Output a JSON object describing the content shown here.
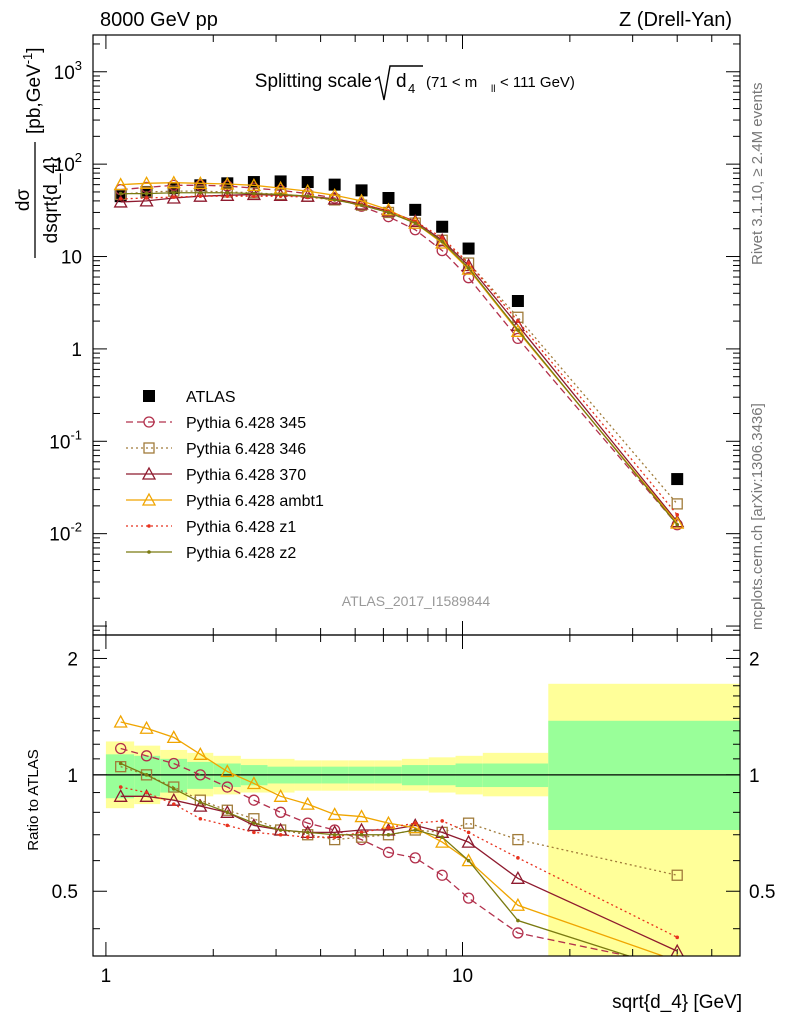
{
  "header": {
    "left": "8000 GeV pp",
    "right": "Z (Drell-Yan)"
  },
  "side_texts": {
    "rivet": "Rivet 3.1.10, ≥ 2.4M events",
    "mcplots": "mcplots.cern.ch [arXiv:1306.3436]"
  },
  "chart_data": [
    {
      "type": "scatter",
      "title_main": "Splitting scale",
      "title_sqrt_arg": "d",
      "title_sqrt_sub": "4",
      "title_range_pre": "(71 < m",
      "title_range_sub": "ll",
      "title_range_post": " < 111 GeV)",
      "ylabel_top": "dσ",
      "ylabel_bottom": "dsqrt{d_4}",
      "ylabel_unit": "[pb,GeV",
      "ylabel_unit_sup": "-1",
      "ylabel_unit_close": "]",
      "xscale": "log",
      "yscale": "log",
      "xlim": [
        0.92,
        60
      ],
      "ylim": [
        0.0008,
        2500
      ],
      "ytick_labels": [
        "10^-2",
        "10^-1",
        "1",
        "10",
        "10^2",
        "10^3"
      ],
      "analysis_label": "ATLAS_2017_I1589844",
      "legend_position": "lower-left",
      "series": [
        {
          "name": "ATLAS",
          "color": "#000000",
          "marker": "square-filled",
          "line": "none",
          "x": [
            1.1,
            1.3,
            1.55,
            1.84,
            2.19,
            2.6,
            3.09,
            3.68,
            4.38,
            5.21,
            6.2,
            7.37,
            8.77,
            10.4,
            14.3,
            40.0
          ],
          "y": [
            45,
            50,
            55,
            59,
            62,
            64,
            65,
            64,
            60,
            52,
            43,
            32,
            21,
            12.2,
            3.3,
            0.039
          ]
        },
        {
          "name": "Pythia 6.428 345",
          "color": "#b2304c",
          "marker": "circle-open",
          "line": "dashed",
          "x": [
            1.1,
            1.3,
            1.55,
            1.84,
            2.19,
            2.6,
            3.09,
            3.68,
            4.38,
            5.21,
            6.2,
            7.37,
            8.77,
            10.4,
            14.3,
            40.0
          ],
          "y": [
            53,
            56,
            59,
            59,
            58,
            55,
            52,
            48,
            43,
            35,
            27,
            19.5,
            11.6,
            5.9,
            1.3,
            0.0125
          ]
        },
        {
          "name": "Pythia 6.428 346",
          "color": "#a07b3a",
          "marker": "square-open",
          "line": "dotted",
          "x": [
            1.1,
            1.3,
            1.55,
            1.84,
            2.19,
            2.6,
            3.09,
            3.68,
            4.38,
            5.21,
            6.2,
            7.37,
            8.77,
            10.4,
            14.3,
            40.0
          ],
          "y": [
            47,
            50,
            51,
            51,
            50,
            49,
            47,
            45,
            41,
            36,
            30,
            23,
            15,
            8.5,
            2.2,
            0.021
          ]
        },
        {
          "name": "Pythia 6.428 370",
          "color": "#8e1a2e",
          "marker": "triangle-open",
          "line": "solid",
          "x": [
            1.1,
            1.3,
            1.55,
            1.84,
            2.19,
            2.6,
            3.09,
            3.68,
            4.38,
            5.21,
            6.2,
            7.37,
            8.77,
            10.4,
            14.3,
            40.0
          ],
          "y": [
            39,
            40,
            43,
            45,
            46,
            47,
            46,
            45,
            42,
            37,
            31,
            24,
            15,
            8.0,
            1.8,
            0.0135
          ]
        },
        {
          "name": "Pythia 6.428 ambt1",
          "color": "#f0a500",
          "marker": "triangle-open",
          "line": "solid",
          "x": [
            1.1,
            1.3,
            1.55,
            1.84,
            2.19,
            2.6,
            3.09,
            3.68,
            4.38,
            5.21,
            6.2,
            7.37,
            8.77,
            10.4,
            14.3,
            40.0
          ],
          "y": [
            60,
            62,
            63,
            62,
            61,
            59,
            55,
            51,
            46,
            40,
            32,
            23,
            14,
            7.3,
            1.55,
            0.013
          ]
        },
        {
          "name": "Pythia 6.428 z1",
          "color": "#e8321e",
          "marker": "dot",
          "line": "dotted",
          "x": [
            1.1,
            1.3,
            1.55,
            1.84,
            2.19,
            2.6,
            3.09,
            3.68,
            4.38,
            5.21,
            6.2,
            7.37,
            8.77,
            10.4,
            14.3,
            40.0
          ],
          "y": [
            42,
            43,
            44,
            45,
            45,
            45,
            45,
            44,
            41,
            37,
            31,
            24,
            16,
            8.5,
            2.0,
            0.016
          ]
        },
        {
          "name": "Pythia 6.428 z2",
          "color": "#7a7a10",
          "marker": "dot",
          "line": "solid",
          "x": [
            1.1,
            1.3,
            1.55,
            1.84,
            2.19,
            2.6,
            3.09,
            3.68,
            4.38,
            5.21,
            6.2,
            7.37,
            8.77,
            10.4,
            14.3,
            40.0
          ],
          "y": [
            48,
            48,
            49,
            49,
            49,
            48,
            47,
            45,
            41,
            36,
            30,
            23,
            14.5,
            7.5,
            1.6,
            0.0125
          ]
        }
      ]
    },
    {
      "type": "line",
      "ylabel": "Ratio to ATLAS",
      "xlabel": "sqrt{d_4} [GeV]",
      "xscale": "log",
      "xlim": [
        0.92,
        60
      ],
      "ylim": [
        0.34,
        2.3
      ],
      "ytick_labels": [
        "0.5",
        "1",
        "2"
      ],
      "xtick_labels": [
        "1",
        "10"
      ],
      "uncertainty_bands": {
        "x_edges": [
          1.0,
          1.2,
          1.42,
          1.69,
          2.0,
          2.39,
          2.84,
          3.38,
          4.02,
          4.78,
          5.68,
          6.76,
          8.04,
          9.56,
          11.4,
          17.4,
          60.0
        ],
        "inner_low": [
          0.87,
          0.88,
          0.9,
          0.92,
          0.93,
          0.94,
          0.95,
          0.95,
          0.95,
          0.95,
          0.95,
          0.94,
          0.94,
          0.93,
          0.93,
          0.72
        ],
        "inner_high": [
          1.13,
          1.12,
          1.1,
          1.08,
          1.07,
          1.06,
          1.05,
          1.05,
          1.05,
          1.05,
          1.05,
          1.06,
          1.06,
          1.07,
          1.07,
          1.38
        ],
        "outer_low": [
          0.82,
          0.84,
          0.86,
          0.88,
          0.89,
          0.9,
          0.9,
          0.91,
          0.91,
          0.91,
          0.91,
          0.91,
          0.9,
          0.89,
          0.88,
          0.3
        ],
        "outer_high": [
          1.22,
          1.19,
          1.16,
          1.14,
          1.12,
          1.1,
          1.1,
          1.09,
          1.09,
          1.09,
          1.09,
          1.1,
          1.11,
          1.12,
          1.14,
          1.72
        ],
        "inner_color": "#99ff99",
        "outer_color": "#ffff99"
      },
      "series": [
        {
          "name": "Pythia 6.428 345",
          "color": "#b2304c",
          "marker": "circle-open",
          "line": "dashed",
          "x": [
            1.1,
            1.3,
            1.55,
            1.84,
            2.19,
            2.6,
            3.09,
            3.68,
            4.38,
            5.21,
            6.2,
            7.37,
            8.77,
            10.4,
            14.3,
            40.0
          ],
          "y": [
            1.17,
            1.12,
            1.07,
            1.0,
            0.93,
            0.86,
            0.8,
            0.75,
            0.72,
            0.68,
            0.63,
            0.61,
            0.55,
            0.48,
            0.39,
            0.32
          ]
        },
        {
          "name": "Pythia 6.428 346",
          "color": "#a07b3a",
          "marker": "square-open",
          "line": "dotted",
          "x": [
            1.1,
            1.3,
            1.55,
            1.84,
            2.19,
            2.6,
            3.09,
            3.68,
            4.38,
            5.21,
            6.2,
            7.37,
            8.77,
            10.4,
            14.3,
            40.0
          ],
          "y": [
            1.05,
            1.0,
            0.93,
            0.86,
            0.81,
            0.77,
            0.72,
            0.7,
            0.68,
            0.69,
            0.7,
            0.72,
            0.71,
            0.75,
            0.68,
            0.55
          ]
        },
        {
          "name": "Pythia 6.428 370",
          "color": "#8e1a2e",
          "marker": "triangle-open",
          "line": "solid",
          "x": [
            1.1,
            1.3,
            1.55,
            1.84,
            2.19,
            2.6,
            3.09,
            3.68,
            4.38,
            5.21,
            6.2,
            7.37,
            8.77,
            10.4,
            14.3,
            40.0
          ],
          "y": [
            0.88,
            0.88,
            0.86,
            0.83,
            0.8,
            0.74,
            0.72,
            0.71,
            0.71,
            0.72,
            0.72,
            0.74,
            0.71,
            0.67,
            0.54,
            0.35
          ]
        },
        {
          "name": "Pythia 6.428 ambt1",
          "color": "#f0a500",
          "marker": "triangle-open",
          "line": "solid",
          "x": [
            1.1,
            1.3,
            1.55,
            1.84,
            2.19,
            2.6,
            3.09,
            3.68,
            4.38,
            5.21,
            6.2,
            7.37,
            8.77,
            10.4,
            14.3,
            40.0
          ],
          "y": [
            1.37,
            1.32,
            1.25,
            1.13,
            1.02,
            0.95,
            0.88,
            0.84,
            0.79,
            0.78,
            0.75,
            0.73,
            0.67,
            0.6,
            0.46,
            0.33
          ]
        },
        {
          "name": "Pythia 6.428 z1",
          "color": "#e8321e",
          "marker": "dot",
          "line": "dotted",
          "x": [
            1.1,
            1.3,
            1.55,
            1.84,
            2.19,
            2.6,
            3.09,
            3.68,
            4.38,
            5.21,
            6.2,
            7.37,
            8.77,
            10.4,
            14.3,
            40.0
          ],
          "y": [
            0.93,
            0.9,
            0.84,
            0.77,
            0.74,
            0.71,
            0.7,
            0.69,
            0.69,
            0.71,
            0.73,
            0.75,
            0.76,
            0.71,
            0.61,
            0.38
          ]
        },
        {
          "name": "Pythia 6.428 z2",
          "color": "#7a7a10",
          "marker": "dot",
          "line": "solid",
          "x": [
            1.1,
            1.3,
            1.55,
            1.84,
            2.19,
            2.6,
            3.09,
            3.68,
            4.38,
            5.21,
            6.2,
            7.37,
            8.77,
            10.4,
            14.3,
            40.0
          ],
          "y": [
            1.07,
            1.0,
            0.92,
            0.85,
            0.8,
            0.75,
            0.72,
            0.71,
            0.7,
            0.7,
            0.7,
            0.72,
            0.69,
            0.6,
            0.42,
            0.31
          ]
        }
      ]
    }
  ]
}
